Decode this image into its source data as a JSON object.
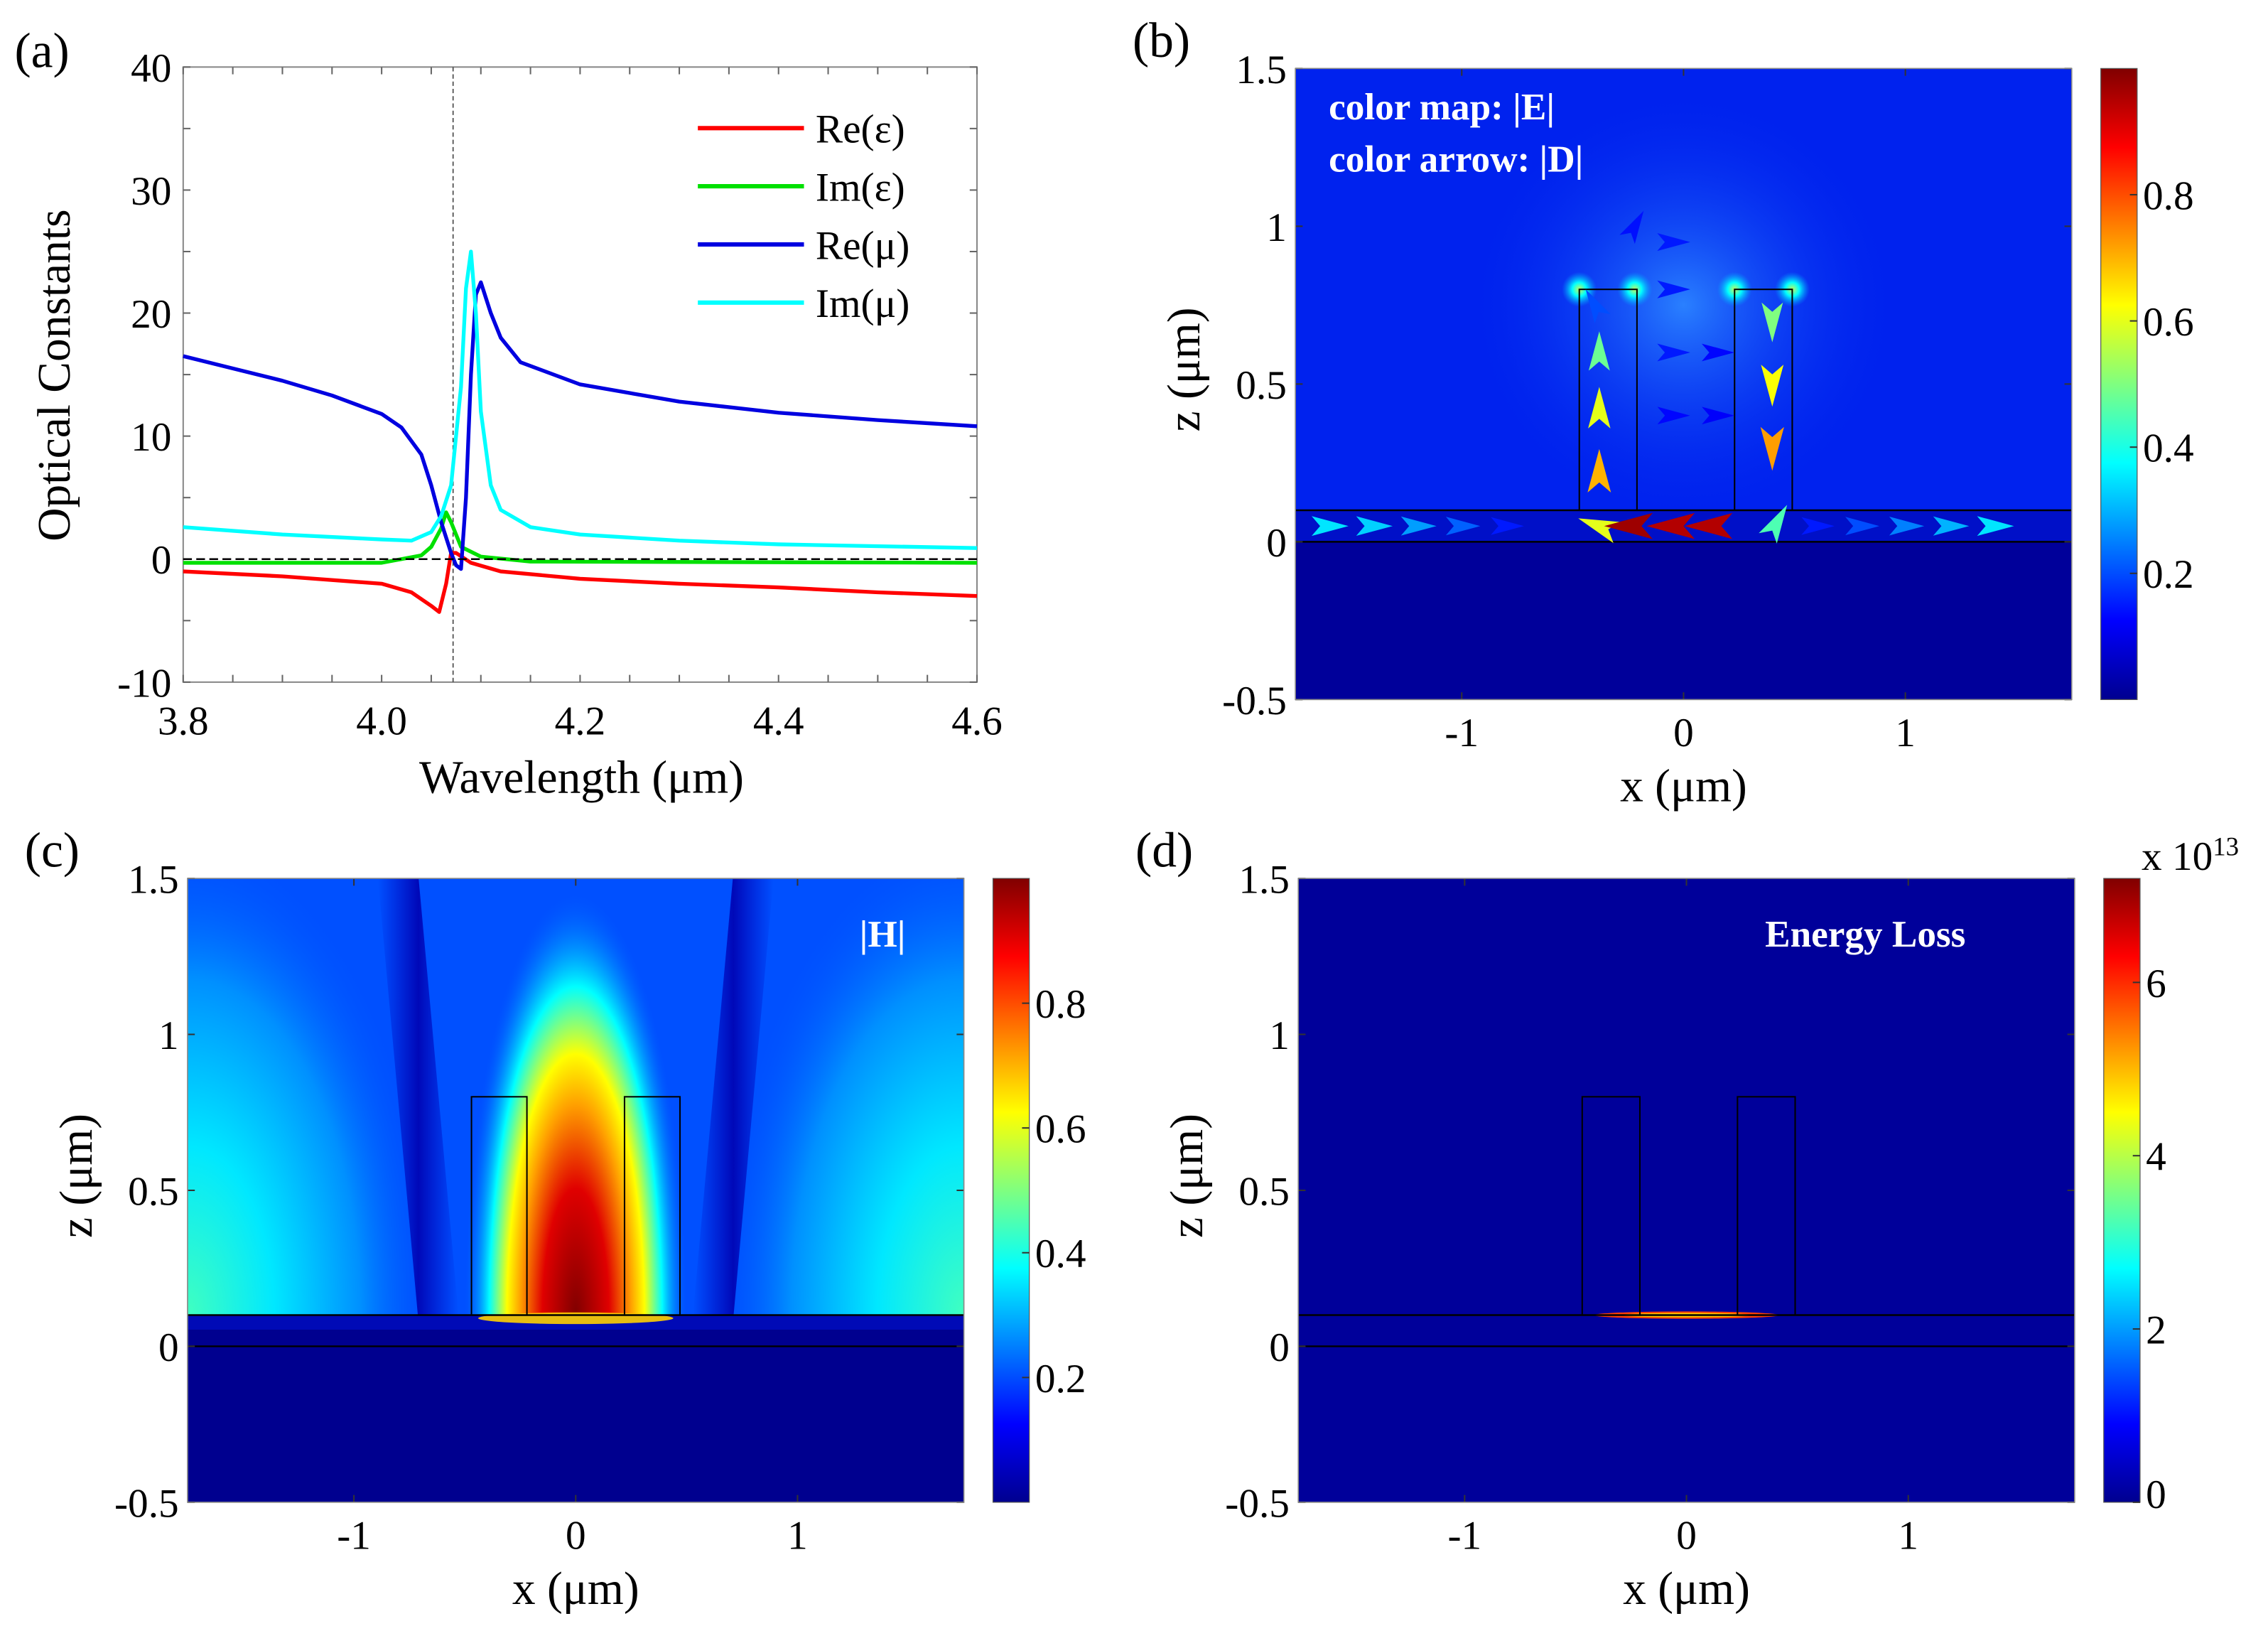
{
  "colors": {
    "re_eps": "#ff0000",
    "im_eps": "#00e000",
    "re_mu": "#0000e0",
    "im_mu": "#00ffff"
  },
  "chart_data": [
    {
      "panel": "(a)",
      "type": "line",
      "xlabel": "Wavelength (μm)",
      "ylabel": "Optical Constants",
      "xlim": [
        3.8,
        4.6
      ],
      "ylim": [
        -10,
        40
      ],
      "xticks": [
        "3.8",
        "4.0",
        "4.2",
        "4.4",
        "4.6"
      ],
      "yticks": [
        "-10",
        "0",
        "10",
        "20",
        "30",
        "40"
      ],
      "legend_position": "top-right",
      "vline_x": 4.072,
      "hline_y": 0,
      "series": [
        {
          "name": "Re(ε)",
          "color": "#ff0000",
          "x": [
            3.8,
            3.9,
            4.0,
            4.03,
            4.05,
            4.058,
            4.065,
            4.07,
            4.075,
            4.09,
            4.12,
            4.2,
            4.3,
            4.4,
            4.5,
            4.6
          ],
          "y": [
            -1.0,
            -1.4,
            -2.0,
            -2.7,
            -3.8,
            -4.3,
            -2.0,
            0.5,
            0.5,
            -0.3,
            -1.0,
            -1.6,
            -2.0,
            -2.3,
            -2.7,
            -3.0
          ]
        },
        {
          "name": "Im(ε)",
          "color": "#00e000",
          "x": [
            3.8,
            4.0,
            4.04,
            4.05,
            4.06,
            4.065,
            4.07,
            4.08,
            4.1,
            4.15,
            4.6
          ],
          "y": [
            -0.3,
            -0.3,
            0.3,
            1.0,
            2.5,
            3.8,
            3.0,
            1.0,
            0.2,
            -0.2,
            -0.3
          ]
        },
        {
          "name": "Re(μ)",
          "color": "#0000e0",
          "x": [
            3.8,
            3.85,
            3.9,
            3.95,
            4.0,
            4.02,
            4.04,
            4.05,
            4.06,
            4.07,
            4.075,
            4.08,
            4.085,
            4.09,
            4.095,
            4.1,
            4.11,
            4.12,
            4.14,
            4.2,
            4.3,
            4.4,
            4.5,
            4.6
          ],
          "y": [
            16.5,
            15.5,
            14.5,
            13.3,
            11.8,
            10.7,
            8.5,
            6.0,
            3.0,
            0.5,
            -0.5,
            -0.8,
            5.0,
            15.0,
            21.5,
            22.5,
            20.0,
            18.0,
            16.0,
            14.2,
            12.8,
            11.9,
            11.3,
            10.8
          ]
        },
        {
          "name": "Im(μ)",
          "color": "#00ffff",
          "x": [
            3.8,
            3.9,
            4.0,
            4.03,
            4.05,
            4.06,
            4.07,
            4.08,
            4.085,
            4.09,
            4.095,
            4.1,
            4.11,
            4.12,
            4.15,
            4.2,
            4.3,
            4.4,
            4.6
          ],
          "y": [
            2.6,
            2.0,
            1.6,
            1.5,
            2.2,
            3.5,
            6.0,
            14.0,
            22.0,
            25.0,
            20.0,
            12.0,
            6.0,
            4.0,
            2.6,
            2.0,
            1.5,
            1.2,
            0.9
          ]
        }
      ]
    },
    {
      "panel": "(b)",
      "type": "heatmap",
      "xlabel": "x (μm)",
      "ylabel": "z (μm)",
      "xlim": [
        -1.75,
        1.75
      ],
      "ylim": [
        -0.5,
        1.5
      ],
      "xticks": [
        "-1",
        "0",
        "1"
      ],
      "yticks": [
        "-0.5",
        "0",
        "0.5",
        "1",
        "1.5"
      ],
      "annotations": [
        "color map: |E|",
        "color arrow: |D|"
      ],
      "colorbar": {
        "range": [
          0,
          1
        ],
        "ticks": [
          "0.2",
          "0.4",
          "0.6",
          "0.8"
        ]
      },
      "pillars": [
        [
          -0.47,
          -0.21
        ],
        [
          0.23,
          0.49
        ]
      ],
      "pillar_top": 0.8,
      "layer": [
        0,
        0.1
      ],
      "arrows": [
        {
          "x": -1.6,
          "z": 0.05,
          "angle": 0,
          "value": 0.35
        },
        {
          "x": -1.4,
          "z": 0.05,
          "angle": 0,
          "value": 0.33
        },
        {
          "x": -1.2,
          "z": 0.05,
          "angle": 0,
          "value": 0.28
        },
        {
          "x": -1.0,
          "z": 0.05,
          "angle": 0,
          "value": 0.22
        },
        {
          "x": -0.8,
          "z": 0.05,
          "angle": 0,
          "value": 0.15
        },
        {
          "x": -0.38,
          "z": 0.05,
          "angle": 200,
          "value": 0.6
        },
        {
          "x": -0.24,
          "z": 0.05,
          "angle": 180,
          "value": 0.97
        },
        {
          "x": -0.05,
          "z": 0.05,
          "angle": 180,
          "value": 0.95
        },
        {
          "x": 0.12,
          "z": 0.05,
          "angle": 180,
          "value": 0.95
        },
        {
          "x": 0.42,
          "z": 0.06,
          "angle": 300,
          "value": 0.45
        },
        {
          "x": 0.6,
          "z": 0.05,
          "angle": 0,
          "value": 0.15
        },
        {
          "x": 0.8,
          "z": 0.05,
          "angle": 0,
          "value": 0.2
        },
        {
          "x": 1.0,
          "z": 0.05,
          "angle": 0,
          "value": 0.25
        },
        {
          "x": 1.2,
          "z": 0.05,
          "angle": 0,
          "value": 0.3
        },
        {
          "x": 1.4,
          "z": 0.05,
          "angle": 0,
          "value": 0.35
        },
        {
          "x": -0.38,
          "z": 0.22,
          "angle": -90,
          "value": 0.7
        },
        {
          "x": -0.38,
          "z": 0.42,
          "angle": -90,
          "value": 0.6
        },
        {
          "x": -0.38,
          "z": 0.6,
          "angle": -90,
          "value": 0.48
        },
        {
          "x": 0.4,
          "z": 0.7,
          "angle": 90,
          "value": 0.5
        },
        {
          "x": 0.4,
          "z": 0.5,
          "angle": 90,
          "value": 0.62
        },
        {
          "x": 0.4,
          "z": 0.3,
          "angle": 90,
          "value": 0.72
        },
        {
          "x": -0.05,
          "z": 0.95,
          "angle": 0,
          "value": 0.15
        },
        {
          "x": -0.05,
          "z": 0.8,
          "angle": 0,
          "value": 0.15
        },
        {
          "x": -0.05,
          "z": 0.6,
          "angle": 0,
          "value": 0.15
        },
        {
          "x": -0.05,
          "z": 0.4,
          "angle": 0,
          "value": 0.13
        },
        {
          "x": 0.15,
          "z": 0.6,
          "angle": 0,
          "value": 0.13
        },
        {
          "x": 0.15,
          "z": 0.4,
          "angle": 0,
          "value": 0.12
        },
        {
          "x": -0.22,
          "z": 1.0,
          "angle": -60,
          "value": 0.14
        },
        {
          "x": -0.4,
          "z": 0.75,
          "angle": -120,
          "value": 0.2
        }
      ]
    },
    {
      "panel": "(c)",
      "type": "heatmap",
      "xlabel": "x (μm)",
      "ylabel": "z (μm)",
      "xlim": [
        -1.75,
        1.75
      ],
      "ylim": [
        -0.5,
        1.5
      ],
      "xticks": [
        "-1",
        "0",
        "1"
      ],
      "yticks": [
        "-0.5",
        "0",
        "0.5",
        "1",
        "1.5"
      ],
      "annotations": [
        "|H|"
      ],
      "colorbar": {
        "range": [
          0,
          1
        ],
        "ticks": [
          "0.2",
          "0.4",
          "0.6",
          "0.8"
        ]
      },
      "pillars": [
        [
          -0.47,
          -0.22
        ],
        [
          0.22,
          0.47
        ]
      ],
      "pillar_top": 0.8,
      "layer": [
        0,
        0.1
      ]
    },
    {
      "panel": "(d)",
      "type": "heatmap",
      "xlabel": "x (μm)",
      "ylabel": "z (μm)",
      "xlim": [
        -1.75,
        1.75
      ],
      "ylim": [
        -0.5,
        1.5
      ],
      "xticks": [
        "-1",
        "0",
        "1"
      ],
      "yticks": [
        "-0.5",
        "0",
        "0.5",
        "1",
        "1.5"
      ],
      "annotations": [
        "Energy Loss"
      ],
      "colorbar": {
        "range": [
          0,
          7.2
        ],
        "ticks": [
          "0",
          "2",
          "4",
          "6"
        ],
        "multiplier": "x 10",
        "exponent": "13"
      },
      "pillars": [
        [
          -0.47,
          -0.21
        ],
        [
          0.23,
          0.49
        ]
      ],
      "pillar_top": 0.8,
      "layer": [
        0,
        0.1
      ]
    }
  ]
}
